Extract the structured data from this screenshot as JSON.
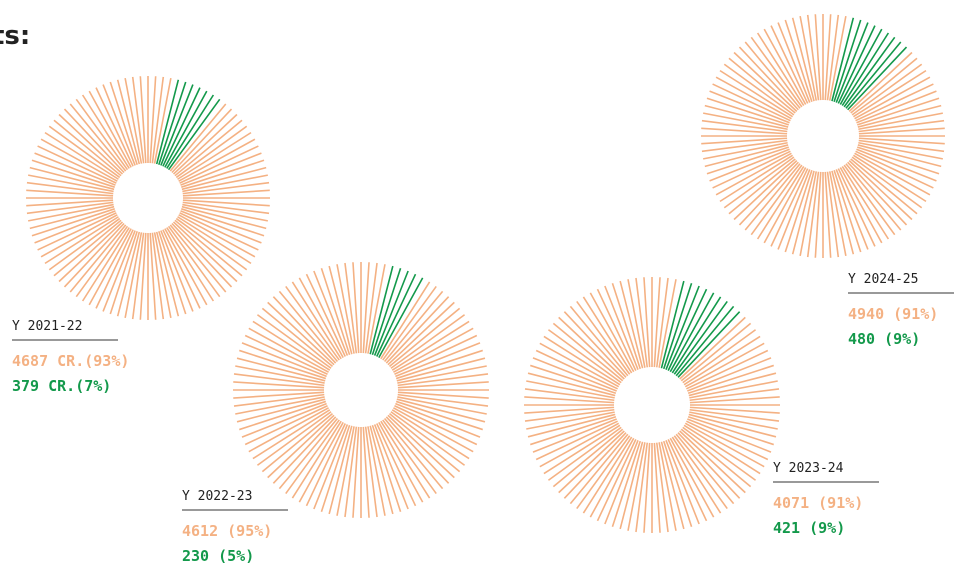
{
  "heading": "ts:",
  "chart_data": [
    {
      "type": "pie",
      "title": "Y 2021-22",
      "values": [
        4687,
        379
      ],
      "value_labels": [
        "4687 CR.(93%)",
        "379 CR.(7%)"
      ],
      "colors": [
        "#f4b183",
        "#13994b"
      ]
    },
    {
      "type": "pie",
      "title": "Y 2022-23",
      "values": [
        4612,
        230
      ],
      "value_labels": [
        "4612 (95%)",
        "230 (5%)"
      ],
      "colors": [
        "#f4b183",
        "#13994b"
      ]
    },
    {
      "type": "pie",
      "title": "Y 2023-24",
      "values": [
        4071,
        421
      ],
      "value_labels": [
        "4071 (91%)",
        "421 (9%)"
      ],
      "colors": [
        "#f4b183",
        "#13994b"
      ]
    },
    {
      "type": "pie",
      "title": "Y 2024-25",
      "values": [
        4940,
        480
      ],
      "value_labels": [
        "4940 (91%)",
        "480 (9%)"
      ],
      "colors": [
        "#f4b183",
        "#13994b"
      ]
    }
  ]
}
